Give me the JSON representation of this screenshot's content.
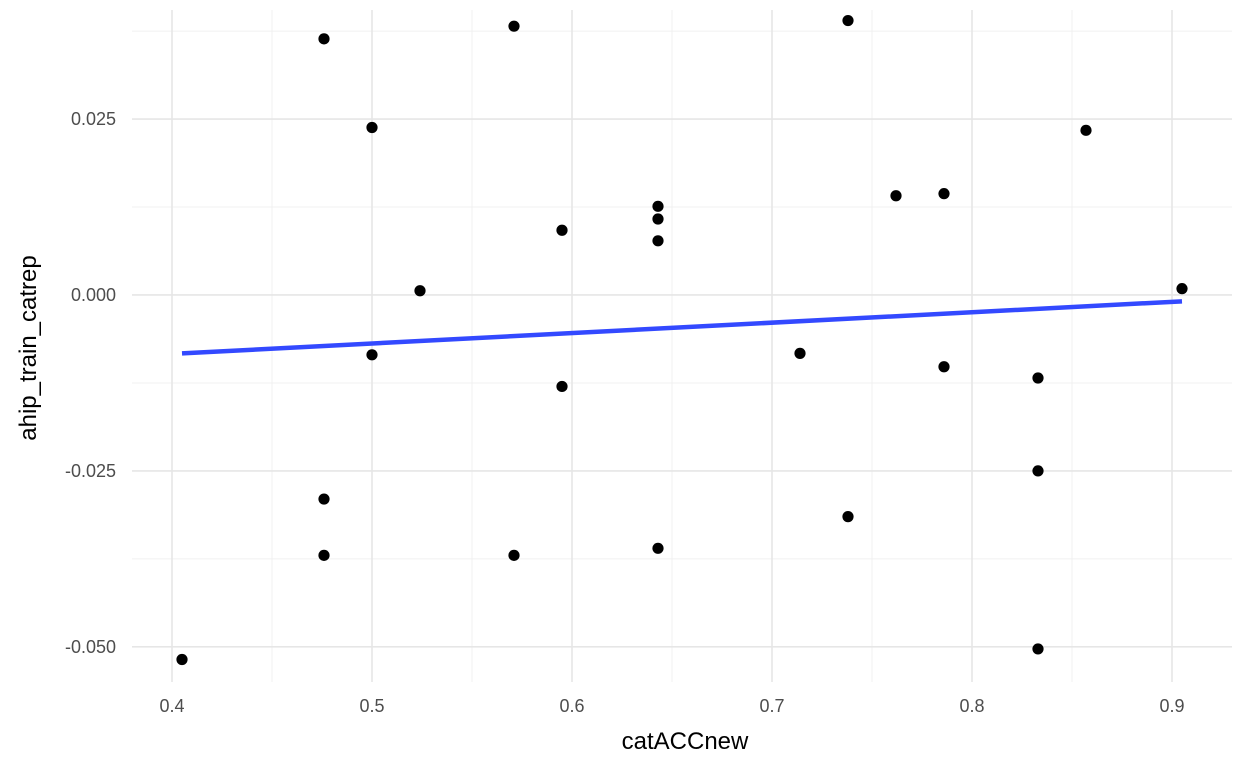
{
  "chart_data": {
    "type": "scatter",
    "xlabel": "catACCnew",
    "ylabel": "ahip_train_catrep",
    "xlim": [
      0.38,
      0.93
    ],
    "ylim": [
      -0.055,
      0.0405
    ],
    "x_ticks": [
      0.4,
      0.5,
      0.6,
      0.7,
      0.8,
      0.9
    ],
    "x_tick_labels": [
      "0.4",
      "0.5",
      "0.6",
      "0.7",
      "0.8",
      "0.9"
    ],
    "x_minor_ticks": [
      0.45,
      0.55,
      0.65,
      0.75,
      0.85
    ],
    "y_ticks": [
      -0.05,
      -0.025,
      0.0,
      0.025
    ],
    "y_tick_labels": [
      "-0.050",
      "-0.025",
      "0.000",
      "0.025"
    ],
    "y_minor_ticks": [
      -0.0375,
      -0.0125,
      0.0125,
      0.0375
    ],
    "grid": true,
    "legend": "none",
    "point_color": "#000000",
    "line_color": "#3349FF",
    "points": [
      {
        "x": 0.405,
        "y": -0.0518
      },
      {
        "x": 0.476,
        "y": 0.0364
      },
      {
        "x": 0.476,
        "y": -0.029
      },
      {
        "x": 0.476,
        "y": -0.037
      },
      {
        "x": 0.5,
        "y": 0.0238
      },
      {
        "x": 0.5,
        "y": -0.0085
      },
      {
        "x": 0.524,
        "y": 0.0006
      },
      {
        "x": 0.571,
        "y": 0.0382
      },
      {
        "x": 0.571,
        "y": -0.037
      },
      {
        "x": 0.595,
        "y": 0.0092
      },
      {
        "x": 0.595,
        "y": -0.013
      },
      {
        "x": 0.643,
        "y": 0.0126
      },
      {
        "x": 0.643,
        "y": 0.0108
      },
      {
        "x": 0.643,
        "y": 0.0077
      },
      {
        "x": 0.643,
        "y": -0.036
      },
      {
        "x": 0.714,
        "y": -0.0083
      },
      {
        "x": 0.738,
        "y": 0.039
      },
      {
        "x": 0.738,
        "y": -0.0315
      },
      {
        "x": 0.762,
        "y": 0.0141
      },
      {
        "x": 0.786,
        "y": 0.0144
      },
      {
        "x": 0.786,
        "y": -0.0102
      },
      {
        "x": 0.833,
        "y": -0.0118
      },
      {
        "x": 0.833,
        "y": -0.025
      },
      {
        "x": 0.833,
        "y": -0.0503
      },
      {
        "x": 0.857,
        "y": 0.0234
      },
      {
        "x": 0.905,
        "y": 0.0009
      }
    ],
    "fit_line": {
      "x": [
        0.405,
        0.905
      ],
      "y": [
        -0.0083,
        -0.0009
      ]
    }
  }
}
